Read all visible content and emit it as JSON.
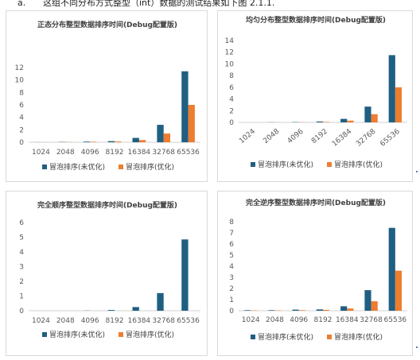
{
  "page": {
    "top_line": {
      "marker": "a.",
      "text": "这组不同分布方式整型（int）数据的测试结果如下图 2.1.1."
    }
  },
  "colors": {
    "series_unoptimized": "#1f5f82",
    "series_optimized": "#ed7d31"
  },
  "chart_data": [
    {
      "type": "bar",
      "title": "正态分布整型数据排序时间(Debug配置版)",
      "categories": [
        "1024",
        "2048",
        "4096",
        "8192",
        "16384",
        "32768",
        "65536"
      ],
      "series": [
        {
          "name": "冒泡排序(未优化)",
          "values": [
            0.01,
            0.04,
            0.1,
            0.18,
            0.7,
            2.8,
            11.4
          ]
        },
        {
          "name": "冒泡排序(优化)",
          "values": [
            0.01,
            0.03,
            0.08,
            0.12,
            0.35,
            1.4,
            6.0
          ]
        }
      ],
      "ylim": [
        0,
        12
      ],
      "yticks": [
        "0",
        "2",
        "4",
        "6",
        "8",
        "10",
        "12"
      ],
      "grid": false,
      "legend": "bottom",
      "xtick_rotation": 0
    },
    {
      "type": "bar",
      "title": "均匀分布整型数据排序时间(Debug配置版)",
      "categories": [
        "1024",
        "2048",
        "4096",
        "8192",
        "16384",
        "32768",
        "65536"
      ],
      "series": [
        {
          "name": "冒泡排序(未优化)",
          "values": [
            0.0,
            0.02,
            0.05,
            0.15,
            0.6,
            2.7,
            11.5
          ]
        },
        {
          "name": "冒泡排序(优化)",
          "values": [
            0.0,
            0.01,
            0.03,
            0.08,
            0.3,
            1.4,
            6.0
          ]
        }
      ],
      "ylim": [
        0,
        14
      ],
      "yticks": [
        "0",
        "2",
        "4",
        "6",
        "8",
        "10",
        "12",
        "14"
      ],
      "grid": false,
      "legend": "bottom",
      "xtick_rotation": -40
    },
    {
      "type": "bar",
      "title": "完全顺序整型数据排序时间(Debug配置版)",
      "categories": [
        "1024",
        "2048",
        "4096",
        "8192",
        "16384",
        "32768",
        "65536"
      ],
      "series": [
        {
          "name": "冒泡排序(未优化)",
          "values": [
            0.0,
            0.0,
            0.01,
            0.05,
            0.25,
            1.2,
            4.85
          ]
        },
        {
          "name": "冒泡排序(优化)",
          "values": [
            0.0,
            0.0,
            0.0,
            0.0,
            0.0,
            0.0,
            0.0
          ]
        }
      ],
      "ylim": [
        0,
        6
      ],
      "yticks": [
        "0",
        "1",
        "2",
        "3",
        "4",
        "5",
        "6"
      ],
      "grid": false,
      "legend": "bottom",
      "xtick_rotation": 0
    },
    {
      "type": "bar",
      "title": "完全逆序整型数据排序时间(Debug配置版)",
      "categories": [
        "1024",
        "2048",
        "4096",
        "8192",
        "16384",
        "32768",
        "65536"
      ],
      "series": [
        {
          "name": "冒泡排序(未优化)",
          "values": [
            0.05,
            0.05,
            0.1,
            0.12,
            0.4,
            1.85,
            7.45
          ]
        },
        {
          "name": "冒泡排序(优化)",
          "values": [
            0.03,
            0.03,
            0.05,
            0.08,
            0.2,
            0.85,
            3.6
          ]
        }
      ],
      "ylim": [
        0,
        8
      ],
      "yticks": [
        "0",
        "1",
        "2",
        "3",
        "4",
        "5",
        "6",
        "7",
        "8"
      ],
      "grid": false,
      "legend": "bottom",
      "xtick_rotation": 0
    }
  ]
}
